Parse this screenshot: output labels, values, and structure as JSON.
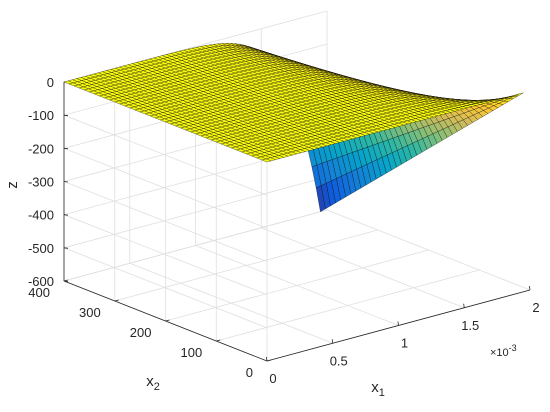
{
  "chart_data": {
    "type": "surface",
    "title": "",
    "xlabel": "x",
    "xlabel_sub": "1",
    "ylabel": "x",
    "ylabel_sub": "2",
    "zlabel": "z",
    "x_exponent_base": "×10",
    "x_exponent_power": "-3",
    "xlim": [
      0,
      0.002
    ],
    "ylim": [
      0,
      400
    ],
    "zlim": [
      -600,
      0
    ],
    "x_ticks": [
      0,
      0.0005,
      0.001,
      0.0015,
      0.002
    ],
    "x_tick_labels": [
      "0",
      "0.5",
      "1",
      "1.5",
      "2"
    ],
    "y_ticks": [
      0,
      100,
      200,
      300,
      400
    ],
    "y_tick_labels": [
      "0",
      "100",
      "200",
      "300",
      "400"
    ],
    "z_ticks": [
      0,
      -100,
      -200,
      -300,
      -400,
      -500,
      -600
    ],
    "z_tick_labels": [
      "0",
      "-100",
      "-200",
      "-300",
      "-400",
      "-500",
      "-600"
    ],
    "grid": true,
    "colormap": "parula",
    "colormap_stops": [
      "#352a87",
      "#0f5cdd",
      "#1481d6",
      "#06a4ca",
      "#2eb7a4",
      "#87bf77",
      "#d1bb59",
      "#fec832",
      "#f9fb0e"
    ],
    "mesh_color": "#000000",
    "surface": {
      "x_range": [
        0,
        0.00195
      ],
      "y_range": [
        0,
        400
      ],
      "description_formula": "z = -x2 * (x1/0.00195)^8 * 1.5",
      "z_at_x1_max_x2_max": -600,
      "z_at_x1_max_x2_min": 0,
      "z_at_x1_min": 0
    }
  }
}
